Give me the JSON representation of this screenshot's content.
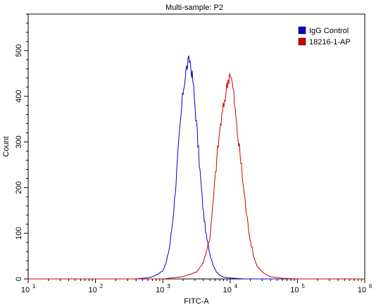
{
  "chart_data": {
    "type": "line",
    "title": "Multi-sample: P2",
    "xlabel": "FITC-A",
    "ylabel": "Count",
    "x_scale": "log",
    "xlim_exponent": [
      1,
      6
    ],
    "ylim": [
      0,
      580
    ],
    "x_ticks": [
      {
        "base": "10",
        "exp": "1",
        "value": 1
      },
      {
        "base": "10",
        "exp": "2",
        "value": 2
      },
      {
        "base": "10",
        "exp": "3",
        "value": 3
      },
      {
        "base": "10",
        "exp": "4",
        "value": 4
      },
      {
        "base": "10",
        "exp": "5",
        "value": 5
      },
      {
        "base": "10",
        "exp": "6",
        "value": 6
      }
    ],
    "y_ticks": [
      "0",
      "100",
      "200",
      "300",
      "400",
      "500"
    ],
    "y_tick_values": [
      0,
      100,
      200,
      300,
      400,
      500
    ],
    "grid": false,
    "legend_position": "top-right",
    "series": [
      {
        "name": "IgG Control",
        "color": "#0000cc",
        "log_x": [
          1.0,
          2.6,
          2.8,
          2.9,
          3.0,
          3.05,
          3.1,
          3.15,
          3.2,
          3.25,
          3.3,
          3.35,
          3.4,
          3.45,
          3.5,
          3.55,
          3.6,
          3.65,
          3.7,
          3.75,
          3.8,
          3.85,
          3.9,
          4.0,
          4.2,
          6.0
        ],
        "counts": [
          0,
          0,
          3,
          8,
          18,
          35,
          70,
          130,
          220,
          320,
          410,
          460,
          482,
          430,
          340,
          240,
          150,
          90,
          55,
          30,
          15,
          8,
          4,
          2,
          0,
          0
        ]
      },
      {
        "name": "18216-1-AP",
        "color": "#cc0000",
        "log_x": [
          1.0,
          3.0,
          3.3,
          3.5,
          3.6,
          3.7,
          3.75,
          3.8,
          3.85,
          3.9,
          3.95,
          4.0,
          4.05,
          4.1,
          4.15,
          4.2,
          4.25,
          4.3,
          4.35,
          4.4,
          4.5,
          4.6,
          4.7,
          4.8,
          5.0,
          6.0
        ],
        "counts": [
          0,
          0,
          5,
          15,
          35,
          90,
          170,
          260,
          330,
          375,
          420,
          455,
          410,
          330,
          270,
          200,
          135,
          85,
          50,
          28,
          12,
          5,
          3,
          1,
          0,
          0
        ]
      }
    ]
  }
}
